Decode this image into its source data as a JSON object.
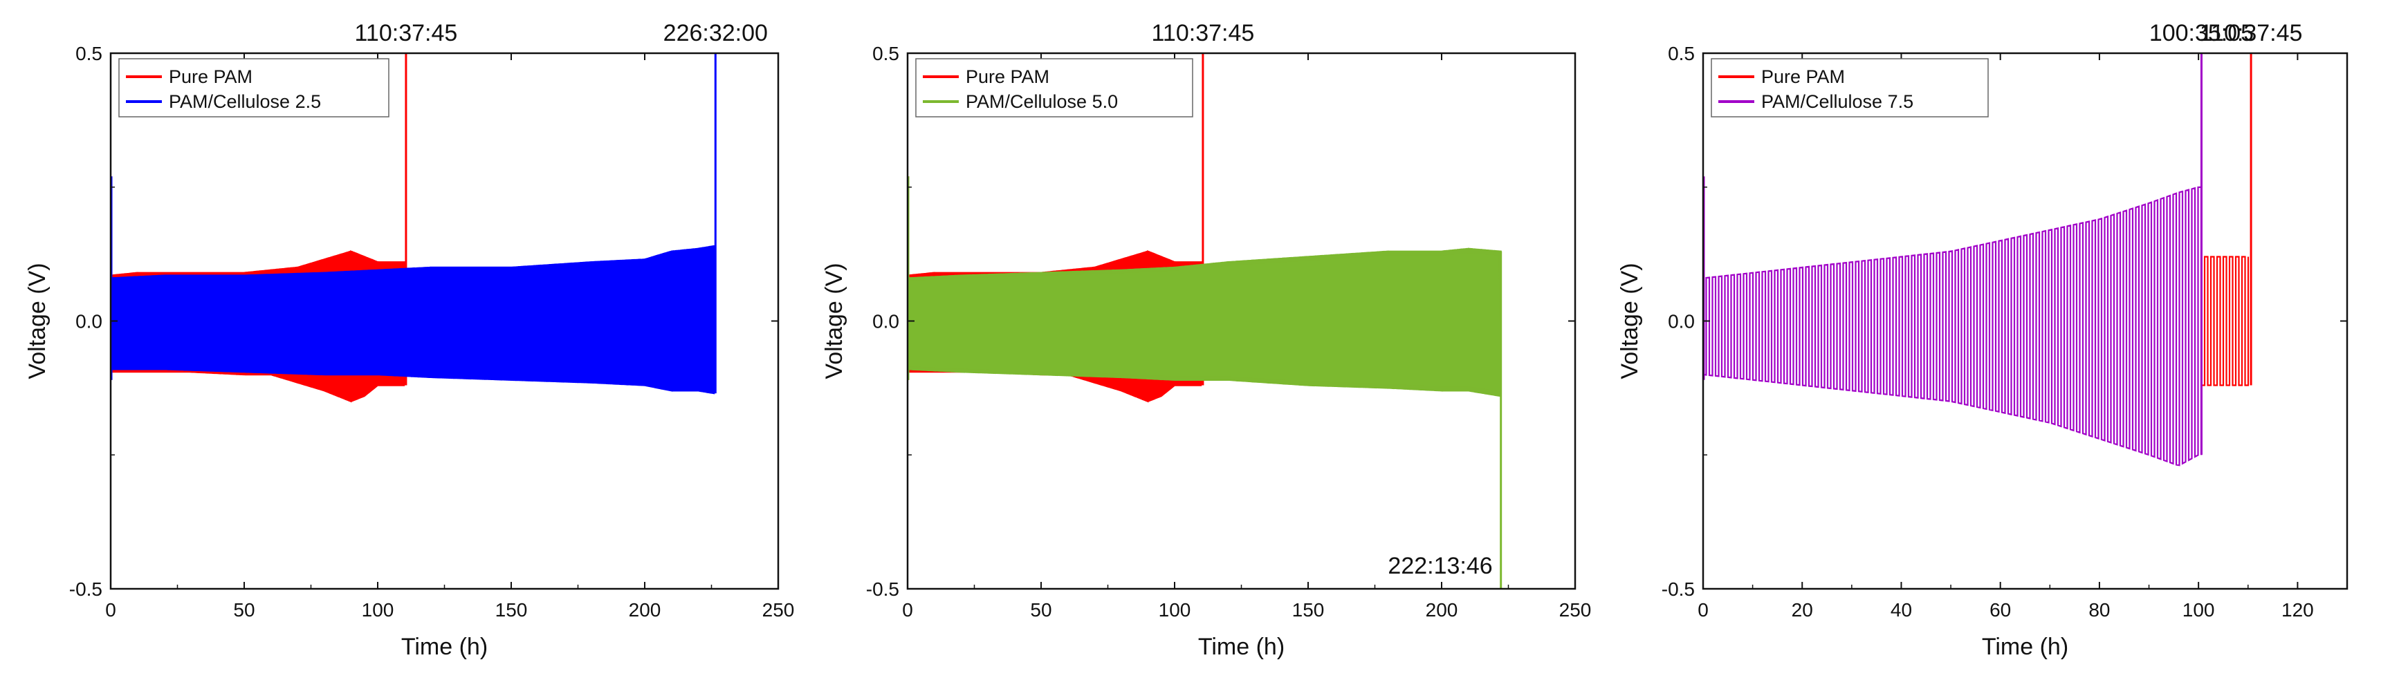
{
  "chart_data": [
    {
      "type": "line",
      "xlabel": "Time (h)",
      "ylabel": "Voltage (V)",
      "xlim": [
        0,
        250
      ],
      "ylim": [
        -0.5,
        0.5
      ],
      "xticks": [
        0,
        50,
        100,
        150,
        200,
        250
      ],
      "xtick_labels": [
        "0",
        "50",
        "100",
        "150",
        "200",
        "250"
      ],
      "yticks": [
        -0.5,
        0.0,
        0.5
      ],
      "ytick_labels": [
        "-0.5",
        "0.0",
        "0.5"
      ],
      "legend_position": "top-left",
      "annotations": [
        {
          "text": "110:37:45",
          "x": 110.6,
          "y": 0.5,
          "position": "above"
        },
        {
          "text": "226:32:00",
          "x": 226.5,
          "y": 0.5,
          "position": "above"
        }
      ],
      "series": [
        {
          "name": "Pure PAM",
          "color": "#ff0000",
          "end_time_h": 110.6,
          "envelope": {
            "x": [
              0,
              10,
              30,
              50,
              60,
              70,
              80,
              90,
              95,
              100,
              110
            ],
            "upper": [
              0.085,
              0.09,
              0.09,
              0.09,
              0.095,
              0.1,
              0.115,
              0.13,
              0.12,
              0.11,
              0.11
            ],
            "lower": [
              -0.095,
              -0.095,
              -0.095,
              -0.1,
              -0.1,
              -0.115,
              -0.13,
              -0.15,
              -0.14,
              -0.12,
              -0.12
            ]
          },
          "failure_spike_v": 0.5
        },
        {
          "name": "PAM/Cellulose 2.5",
          "color": "#0000ff",
          "end_time_h": 226.5,
          "envelope": {
            "x": [
              0,
              20,
              50,
              80,
              100,
              120,
              150,
              180,
              200,
              210,
              220,
              226
            ],
            "upper": [
              0.08,
              0.085,
              0.085,
              0.09,
              0.095,
              0.1,
              0.1,
              0.11,
              0.115,
              0.13,
              0.135,
              0.14
            ],
            "lower": [
              -0.09,
              -0.09,
              -0.095,
              -0.1,
              -0.1,
              -0.105,
              -0.11,
              -0.115,
              -0.12,
              -0.13,
              -0.13,
              -0.135
            ]
          },
          "failure_spike_v": 0.5
        }
      ]
    },
    {
      "type": "line",
      "xlabel": "Time (h)",
      "ylabel": "Voltage (V)",
      "xlim": [
        0,
        250
      ],
      "ylim": [
        -0.5,
        0.5
      ],
      "xticks": [
        0,
        50,
        100,
        150,
        200,
        250
      ],
      "xtick_labels": [
        "0",
        "50",
        "100",
        "150",
        "200",
        "250"
      ],
      "yticks": [
        -0.5,
        0.0,
        0.5
      ],
      "ytick_labels": [
        "-0.5",
        "0.0",
        "0.5"
      ],
      "legend_position": "top-left",
      "annotations": [
        {
          "text": "110:37:45",
          "x": 110.6,
          "y": 0.5,
          "position": "above"
        },
        {
          "text": "222:13:46",
          "x": 222.2,
          "y": -0.5,
          "position": "inside-bottom"
        }
      ],
      "series": [
        {
          "name": "Pure PAM",
          "color": "#ff0000",
          "end_time_h": 110.6,
          "envelope": {
            "x": [
              0,
              10,
              30,
              50,
              60,
              70,
              80,
              90,
              95,
              100,
              110
            ],
            "upper": [
              0.085,
              0.09,
              0.09,
              0.09,
              0.095,
              0.1,
              0.115,
              0.13,
              0.12,
              0.11,
              0.11
            ],
            "lower": [
              -0.095,
              -0.095,
              -0.095,
              -0.1,
              -0.1,
              -0.115,
              -0.13,
              -0.15,
              -0.14,
              -0.12,
              -0.12
            ]
          },
          "failure_spike_v": 0.5
        },
        {
          "name": "PAM/Cellulose 5.0",
          "color": "#7cb82f",
          "end_time_h": 222.2,
          "envelope": {
            "x": [
              0,
              20,
              50,
              80,
              100,
              120,
              150,
              180,
              200,
              210,
              222
            ],
            "upper": [
              0.08,
              0.085,
              0.09,
              0.095,
              0.1,
              0.11,
              0.12,
              0.13,
              0.13,
              0.135,
              0.13
            ],
            "lower": [
              -0.09,
              -0.095,
              -0.1,
              -0.105,
              -0.11,
              -0.11,
              -0.12,
              -0.125,
              -0.13,
              -0.13,
              -0.14
            ]
          },
          "failure_spike_v": -0.5
        }
      ]
    },
    {
      "type": "line",
      "xlabel": "Time (h)",
      "ylabel": "Voltage (V)",
      "xlim": [
        0,
        130
      ],
      "ylim": [
        -0.5,
        0.5
      ],
      "xticks": [
        0,
        20,
        40,
        60,
        80,
        100,
        120
      ],
      "xtick_labels": [
        "0",
        "20",
        "40",
        "60",
        "80",
        "100",
        "120"
      ],
      "yticks": [
        -0.5,
        0.0,
        0.5
      ],
      "ytick_labels": [
        "-0.5",
        "0.0",
        "0.5"
      ],
      "legend_position": "top-left",
      "annotations": [
        {
          "text": "100:35:05",
          "x": 100.6,
          "y": 0.5,
          "position": "above"
        },
        {
          "text": "110:37:45",
          "x": 110.6,
          "y": 0.5,
          "position": "above"
        }
      ],
      "series": [
        {
          "name": "Pure PAM",
          "color": "#ff0000",
          "end_time_h": 110.6,
          "visible_from_h": 100.6,
          "envelope": {
            "x": [
              100.6,
              105,
              110.6
            ],
            "upper": [
              0.12,
              0.12,
              0.12
            ],
            "lower": [
              -0.12,
              -0.12,
              -0.12
            ]
          },
          "failure_spike_v": 0.5
        },
        {
          "name": "PAM/Cellulose 7.5",
          "color": "#a100c8",
          "end_time_h": 100.6,
          "envelope": {
            "x": [
              0,
              10,
              20,
              30,
              40,
              50,
              60,
              70,
              80,
              90,
              96,
              100
            ],
            "upper": [
              0.08,
              0.09,
              0.1,
              0.11,
              0.12,
              0.13,
              0.15,
              0.17,
              0.19,
              0.22,
              0.24,
              0.25
            ],
            "lower": [
              -0.1,
              -0.11,
              -0.12,
              -0.13,
              -0.14,
              -0.15,
              -0.17,
              -0.19,
              -0.22,
              -0.25,
              -0.27,
              -0.25
            ]
          },
          "failure_spike_v": 0.5
        }
      ]
    }
  ]
}
